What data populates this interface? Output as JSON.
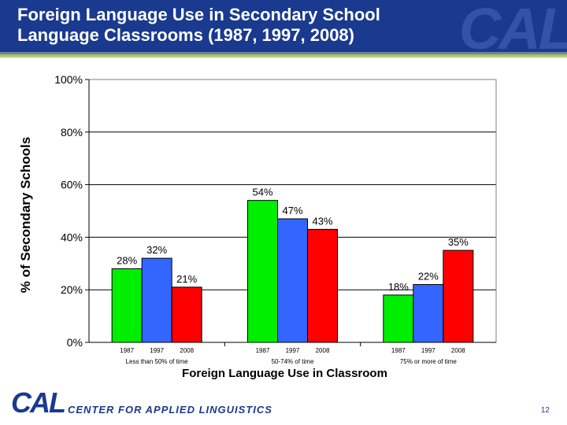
{
  "slide": {
    "title_line1": "Foreign Language Use in Secondary School",
    "title_line2": "Language Classrooms (1987, 1997, 2008)",
    "watermark": "CAL",
    "footer_logo": "CAL",
    "footer_org": "CENTER FOR APPLIED LINGUISTICS",
    "page_number": "12"
  },
  "colors": {
    "header": "#1a3a8f",
    "green": "#00ee00",
    "blue": "#3366ff",
    "red": "#ff0000"
  },
  "chart_data": {
    "type": "bar",
    "xlabel": "Foreign Language Use in Classroom",
    "ylabel": "% of Secondary Schools",
    "ylim": [
      0,
      100
    ],
    "y_ticks": [
      "0%",
      "20%",
      "40%",
      "60%",
      "80%",
      "100%"
    ],
    "grid": true,
    "legend": "none",
    "categories": [
      "Less than 50% of time",
      "50-74% of time",
      "75% or more of time"
    ],
    "years": [
      "1987",
      "1997",
      "2008"
    ],
    "values": [
      [
        28,
        32,
        21
      ],
      [
        54,
        47,
        43
      ],
      [
        18,
        22,
        35
      ]
    ],
    "value_labels": [
      [
        "28%",
        "32%",
        "21%"
      ],
      [
        "54%",
        "47%",
        "43%"
      ],
      [
        "18%",
        "22%",
        "35%"
      ]
    ]
  }
}
